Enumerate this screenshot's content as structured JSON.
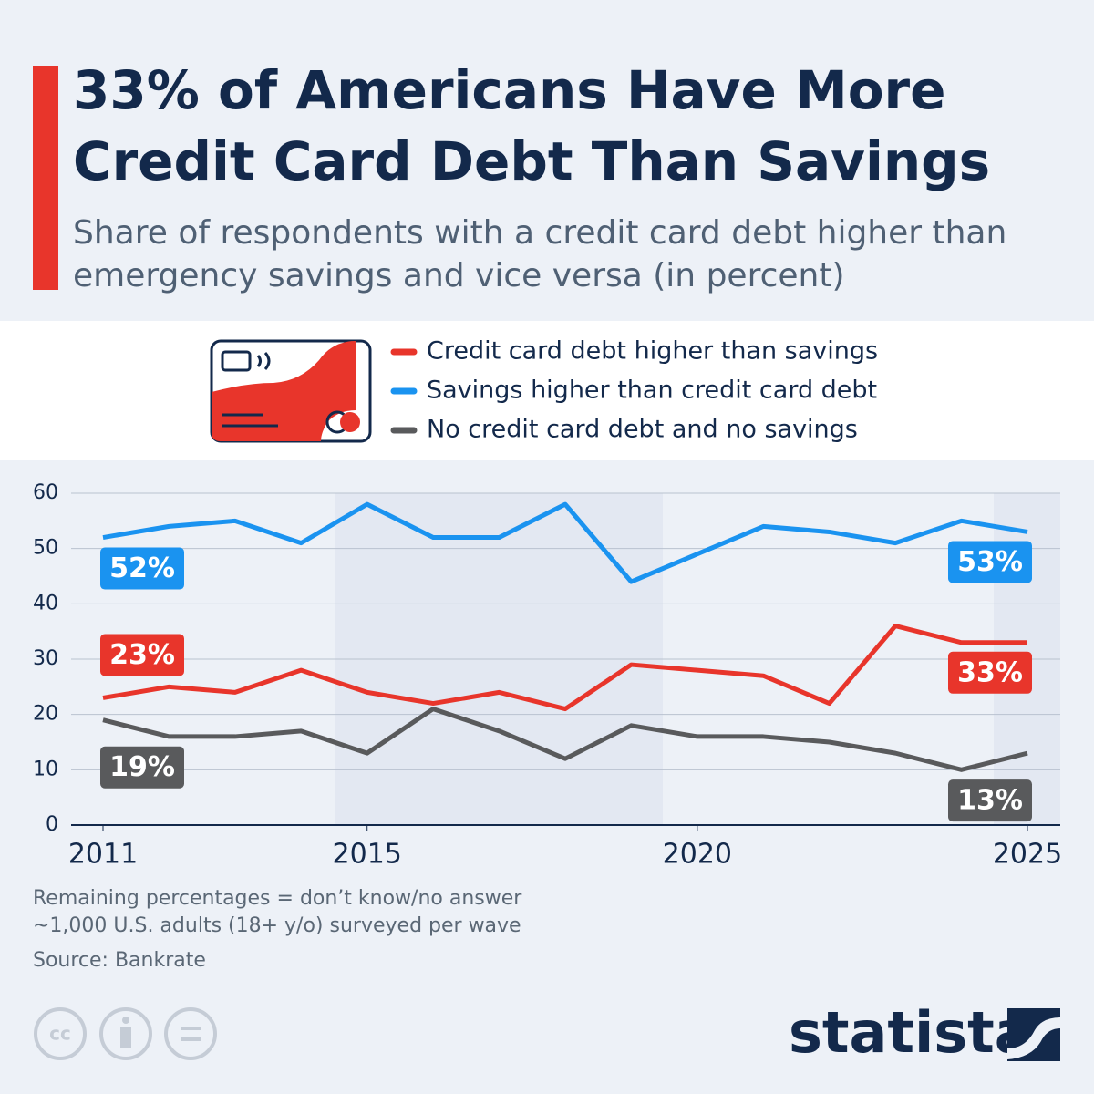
{
  "chart_data": {
    "type": "line",
    "title": "33% of Americans Have More Credit Card Debt Than Savings",
    "title_lines": [
      "33% of Americans Have More",
      "Credit Card Debt Than Savings"
    ],
    "subtitle_lines": [
      "Share of respondents with a credit card debt higher than",
      "emergency savings and vice versa (in percent)"
    ],
    "x": [
      2011,
      2012,
      2013,
      2014,
      2015,
      2016,
      2017,
      2018,
      2019,
      2020,
      2021,
      2022,
      2023,
      2024,
      2025
    ],
    "xlim": [
      2011,
      2025
    ],
    "xticks": [
      2011,
      2015,
      2020,
      2025
    ],
    "ylim": [
      0,
      60
    ],
    "yticks": [
      0,
      10,
      20,
      30,
      40,
      50,
      60
    ],
    "grid": true,
    "series": [
      {
        "name": "Credit card debt higher than savings",
        "color": "#e8352b",
        "values": [
          23,
          25,
          24,
          28,
          24,
          22,
          24,
          21,
          29,
          28,
          27,
          22,
          36,
          33,
          33
        ],
        "value_labels": [
          "23%",
          null,
          null,
          null,
          null,
          null,
          null,
          null,
          null,
          null,
          null,
          null,
          null,
          null,
          "33%"
        ]
      },
      {
        "name": "Savings higher than credit card debt",
        "color": "#1a93f0",
        "values": [
          52,
          54,
          55,
          51,
          58,
          52,
          52,
          58,
          44,
          49,
          54,
          53,
          51,
          55,
          53
        ],
        "value_labels": [
          "52%",
          null,
          null,
          null,
          null,
          null,
          null,
          null,
          null,
          null,
          null,
          null,
          null,
          null,
          "53%"
        ]
      },
      {
        "name": "No credit card debt and no savings",
        "color": "#595a5c",
        "values": [
          19,
          16,
          16,
          17,
          13,
          21,
          17,
          12,
          18,
          16,
          16,
          15,
          13,
          10,
          13
        ],
        "value_labels": [
          "19%",
          null,
          null,
          null,
          null,
          null,
          null,
          null,
          null,
          null,
          null,
          null,
          null,
          null,
          "13%"
        ]
      }
    ],
    "notes": [
      "Remaining percentages = don’t know/no answer",
      "~1,000 U.S. adults (18+ y/o) surveyed per wave"
    ],
    "source": "Source: Bankrate",
    "brand": "statista"
  }
}
